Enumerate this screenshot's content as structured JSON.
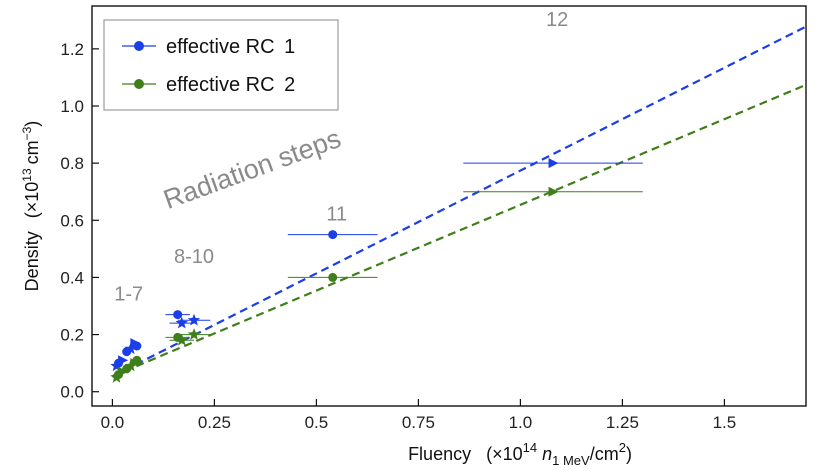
{
  "chart_data": {
    "type": "scatter",
    "title": "",
    "xlabel": {
      "prefix": "Fluency",
      "open": "(×10",
      "exp": "14",
      "var": "n",
      "sub": "1 MeV",
      "unit": "/cm",
      "unit_exp": "2",
      "close": ")"
    },
    "ylabel": {
      "prefix": "Density",
      "open": "(×10",
      "exp": "13",
      "unit": "cm",
      "unit_exp": "−3",
      "close": ")"
    },
    "xlim": [
      -0.05,
      1.7
    ],
    "ylim": [
      -0.05,
      1.35
    ],
    "xticks": [
      0.0,
      0.25,
      0.5,
      0.75,
      1.0,
      1.25,
      1.5
    ],
    "xtick_labels": [
      "0.0",
      "0.25",
      "0.5",
      "0.75",
      "1.0",
      "1.25",
      "1.5"
    ],
    "yticks": [
      0.0,
      0.2,
      0.4,
      0.6,
      0.8,
      1.0,
      1.2
    ],
    "ytick_labels": [
      "0.0",
      "0.2",
      "0.4",
      "0.6",
      "0.8",
      "1.0",
      "1.2"
    ],
    "legend_position": "top-left",
    "series": [
      {
        "name": "effective RC 1",
        "label_main": "effective RC",
        "label_num": "1",
        "color": "#1a3ee8",
        "fit_line": {
          "slope": 0.72,
          "intercept": 0.054
        },
        "points": [
          {
            "x": 0.16,
            "y": 0.27,
            "xerr": 0.03,
            "marker": "circle"
          },
          {
            "x": 0.54,
            "y": 0.55,
            "xerr": 0.11,
            "marker": "circle"
          },
          {
            "x": 0.2,
            "y": 0.25,
            "xerr": 0.04,
            "marker": "star"
          },
          {
            "x": 0.17,
            "y": 0.24,
            "xerr": 0.03,
            "marker": "star"
          },
          {
            "x": 1.08,
            "y": 0.8,
            "xerr": 0.22,
            "marker": "triangle"
          },
          {
            "x": 0.01,
            "y": 0.09,
            "xerr": 0.005,
            "marker": "star"
          },
          {
            "x": 0.015,
            "y": 0.1,
            "xerr": 0.005,
            "marker": "circle"
          },
          {
            "x": 0.025,
            "y": 0.11,
            "xerr": 0.005,
            "marker": "triangle"
          },
          {
            "x": 0.035,
            "y": 0.14,
            "xerr": 0.006,
            "marker": "circle"
          },
          {
            "x": 0.045,
            "y": 0.15,
            "xerr": 0.006,
            "marker": "star"
          },
          {
            "x": 0.055,
            "y": 0.17,
            "xerr": 0.007,
            "marker": "triangle"
          },
          {
            "x": 0.06,
            "y": 0.16,
            "xerr": 0.007,
            "marker": "circle"
          }
        ]
      },
      {
        "name": "effective RC 2",
        "label_main": "effective RC",
        "label_num": "2",
        "color": "#3f7e1b",
        "fit_line": {
          "slope": 0.6,
          "intercept": 0.054
        },
        "points": [
          {
            "x": 0.16,
            "y": 0.19,
            "xerr": 0.03,
            "marker": "circle"
          },
          {
            "x": 0.54,
            "y": 0.4,
            "xerr": 0.11,
            "marker": "circle"
          },
          {
            "x": 0.2,
            "y": 0.2,
            "xerr": 0.04,
            "marker": "star"
          },
          {
            "x": 0.17,
            "y": 0.18,
            "xerr": 0.03,
            "marker": "star"
          },
          {
            "x": 1.08,
            "y": 0.7,
            "xerr": 0.22,
            "marker": "triangle"
          },
          {
            "x": 0.01,
            "y": 0.05,
            "xerr": 0.005,
            "marker": "star"
          },
          {
            "x": 0.015,
            "y": 0.06,
            "xerr": 0.005,
            "marker": "circle"
          },
          {
            "x": 0.025,
            "y": 0.07,
            "xerr": 0.005,
            "marker": "triangle"
          },
          {
            "x": 0.035,
            "y": 0.08,
            "xerr": 0.006,
            "marker": "circle"
          },
          {
            "x": 0.045,
            "y": 0.09,
            "xerr": 0.006,
            "marker": "star"
          },
          {
            "x": 0.055,
            "y": 0.1,
            "xerr": 0.007,
            "marker": "triangle"
          },
          {
            "x": 0.06,
            "y": 0.11,
            "xerr": 0.007,
            "marker": "circle"
          }
        ]
      }
    ],
    "annotations": [
      {
        "text": "Radiation steps",
        "x": 0.35,
        "y": 0.75,
        "rotation": -20,
        "size": 27
      },
      {
        "text": "12",
        "x": 1.09,
        "y": 1.28,
        "size": 20
      },
      {
        "text": "11",
        "x": 0.55,
        "y": 0.6,
        "size": 20
      },
      {
        "text": "8-10",
        "x": 0.2,
        "y": 0.45,
        "size": 20
      },
      {
        "text": "1-7",
        "x": 0.04,
        "y": 0.32,
        "size": 20
      }
    ]
  }
}
